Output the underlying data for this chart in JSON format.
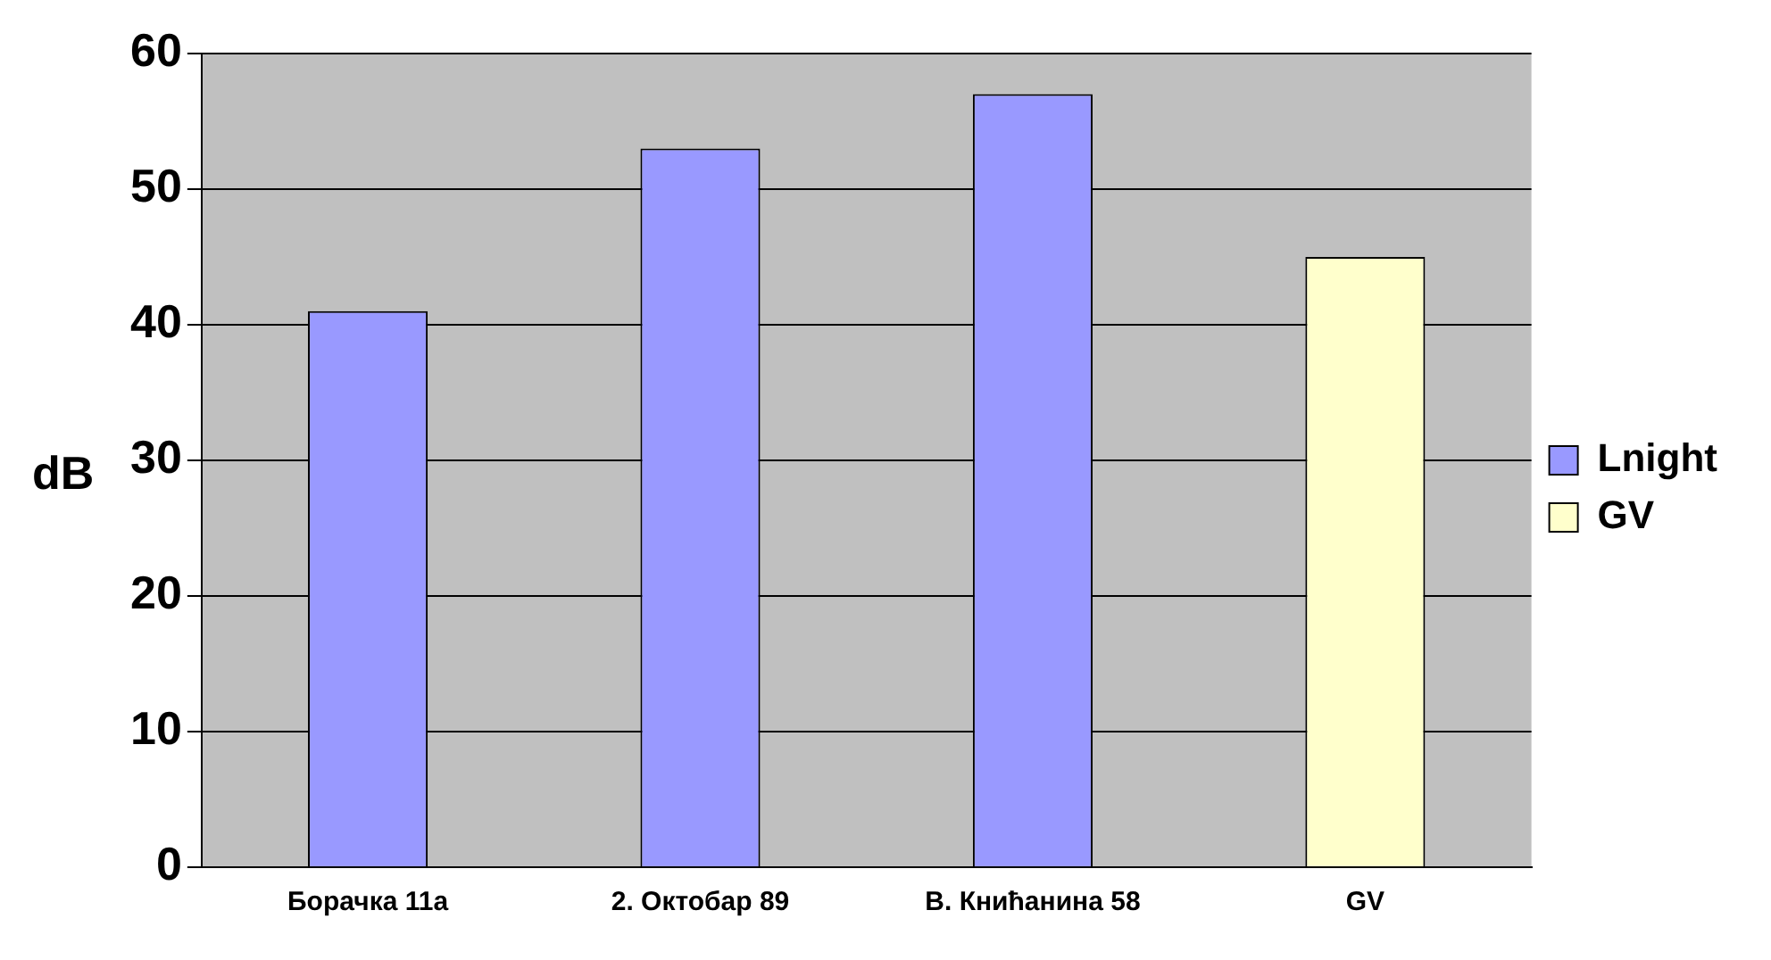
{
  "chart_data": {
    "type": "bar",
    "ylabel": "dB",
    "categories": [
      "Борачка 11а",
      "2. Октобар 89",
      "В. Книћанина 58",
      "GV"
    ],
    "series": [
      {
        "name": "Lnight",
        "color": "#9999ff",
        "values": [
          41,
          53,
          57,
          null
        ]
      },
      {
        "name": "GV",
        "color": "#ffffcc",
        "values": [
          null,
          null,
          null,
          45
        ]
      }
    ],
    "ylim": [
      0,
      60
    ],
    "yticks": [
      0,
      10,
      20,
      30,
      40,
      50,
      60
    ],
    "grid": "y",
    "legend": "right"
  }
}
